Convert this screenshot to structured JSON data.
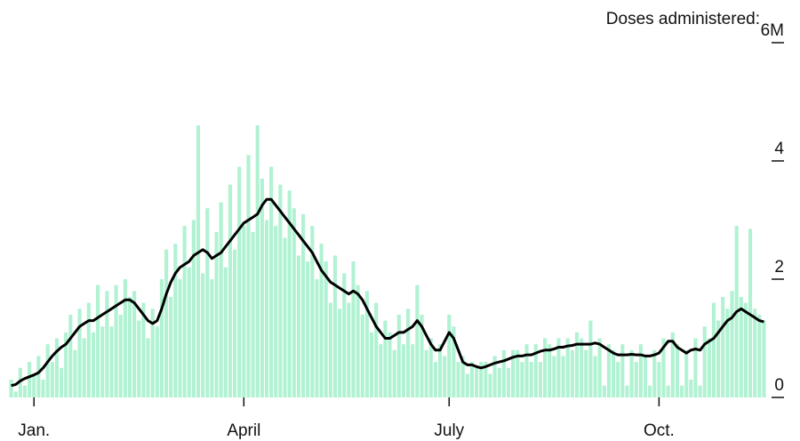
{
  "chart_data": {
    "type": "bar_line",
    "title": "Doses administered:",
    "categories": [
      null,
      null,
      null,
      null,
      null,
      "Jan.",
      null,
      null,
      null,
      null,
      null,
      null,
      null,
      null,
      null,
      null,
      null,
      null,
      null,
      null,
      null,
      null,
      null,
      null,
      null,
      null,
      null,
      null,
      null,
      null,
      null,
      null,
      null,
      null,
      null,
      null,
      null,
      null,
      null,
      null,
      null,
      null,
      null,
      null,
      null,
      null,
      null,
      null,
      null,
      null,
      null,
      "April",
      null,
      null,
      null,
      null,
      null,
      null,
      null,
      null,
      null,
      null,
      null,
      null,
      null,
      null,
      null,
      null,
      null,
      null,
      null,
      null,
      null,
      null,
      null,
      null,
      null,
      null,
      null,
      null,
      null,
      null,
      null,
      null,
      null,
      null,
      null,
      null,
      null,
      null,
      null,
      null,
      null,
      null,
      null,
      null,
      "July",
      null,
      null,
      null,
      null,
      null,
      null,
      null,
      null,
      null,
      null,
      null,
      null,
      null,
      null,
      null,
      null,
      null,
      null,
      null,
      null,
      null,
      null,
      null,
      null,
      null,
      null,
      null,
      null,
      null,
      null,
      null,
      null,
      null,
      null,
      null,
      null,
      null,
      null,
      null,
      null,
      null,
      null,
      null,
      null,
      null,
      "Oct.",
      null,
      null,
      null,
      null,
      null,
      null,
      null,
      null,
      null,
      null,
      null,
      null,
      null,
      null,
      null,
      null,
      null,
      null,
      null,
      null,
      null,
      null,
      null
    ],
    "series": [
      {
        "color": "#b0f2d2",
        "render": "bar",
        "values": [
          0.3,
          0.1,
          0.5,
          0.2,
          0.6,
          0.4,
          0.7,
          0.3,
          0.9,
          0.6,
          1.0,
          0.5,
          1.1,
          1.4,
          0.8,
          1.5,
          1.0,
          1.6,
          1.1,
          1.9,
          1.2,
          1.8,
          1.2,
          1.9,
          1.4,
          2.0,
          1.7,
          1.8,
          1.3,
          1.6,
          1.0,
          1.5,
          1.2,
          2.0,
          2.5,
          1.7,
          2.6,
          2.0,
          2.9,
          2.2,
          3.0,
          4.6,
          2.1,
          3.2,
          2.0,
          2.8,
          3.3,
          2.2,
          3.6,
          2.5,
          3.9,
          2.9,
          4.1,
          2.8,
          4.6,
          3.7,
          3.0,
          3.9,
          2.9,
          3.6,
          2.7,
          3.5,
          3.2,
          2.4,
          3.1,
          2.3,
          2.9,
          2.0,
          2.6,
          2.3,
          1.6,
          2.4,
          1.5,
          2.1,
          1.6,
          2.3,
          1.9,
          1.4,
          1.8,
          1.1,
          1.6,
          0.9,
          1.3,
          1.1,
          0.8,
          1.4,
          0.9,
          1.5,
          0.9,
          1.9,
          1.4,
          0.8,
          1.0,
          0.6,
          0.9,
          0.7,
          1.4,
          1.2,
          0.6,
          0.7,
          0.4,
          0.6,
          0.5,
          0.6,
          0.6,
          0.4,
          0.7,
          0.5,
          0.8,
          0.5,
          0.8,
          0.8,
          0.6,
          0.9,
          0.6,
          0.9,
          0.6,
          1.0,
          0.9,
          0.7,
          1.0,
          0.7,
          1.0,
          0.8,
          1.1,
          1.0,
          0.8,
          1.3,
          0.7,
          1.0,
          0.2,
          0.9,
          0.8,
          0.6,
          0.9,
          0.2,
          0.8,
          0.6,
          0.9,
          0.7,
          0.2,
          0.8,
          0.6,
          1.0,
          0.2,
          1.1,
          0.9,
          0.2,
          0.8,
          0.3,
          1.0,
          0.2,
          1.2,
          1.0,
          1.6,
          1.3,
          1.7,
          1.5,
          1.8,
          2.9,
          1.7,
          1.6,
          2.85,
          1.5,
          1.4,
          1.3
        ]
      },
      {
        "color": "#000000",
        "render": "line",
        "values": [
          0.2,
          0.22,
          0.28,
          0.32,
          0.35,
          0.38,
          0.42,
          0.5,
          0.6,
          0.7,
          0.78,
          0.85,
          0.9,
          1.0,
          1.1,
          1.2,
          1.25,
          1.3,
          1.3,
          1.35,
          1.4,
          1.45,
          1.5,
          1.55,
          1.6,
          1.65,
          1.65,
          1.6,
          1.5,
          1.4,
          1.3,
          1.25,
          1.3,
          1.5,
          1.75,
          1.95,
          2.1,
          2.2,
          2.25,
          2.3,
          2.4,
          2.45,
          2.5,
          2.45,
          2.35,
          2.4,
          2.45,
          2.55,
          2.65,
          2.75,
          2.85,
          2.95,
          3.0,
          3.05,
          3.1,
          3.25,
          3.35,
          3.35,
          3.25,
          3.15,
          3.05,
          2.95,
          2.85,
          2.75,
          2.65,
          2.55,
          2.45,
          2.3,
          2.15,
          2.05,
          1.95,
          1.9,
          1.85,
          1.8,
          1.75,
          1.8,
          1.75,
          1.65,
          1.5,
          1.35,
          1.2,
          1.1,
          1.0,
          1.0,
          1.05,
          1.1,
          1.1,
          1.15,
          1.2,
          1.3,
          1.2,
          1.05,
          0.9,
          0.8,
          0.8,
          0.95,
          1.1,
          1.0,
          0.8,
          0.6,
          0.55,
          0.55,
          0.52,
          0.5,
          0.52,
          0.55,
          0.58,
          0.6,
          0.62,
          0.65,
          0.68,
          0.7,
          0.7,
          0.72,
          0.72,
          0.75,
          0.78,
          0.8,
          0.8,
          0.82,
          0.85,
          0.85,
          0.87,
          0.88,
          0.9,
          0.9,
          0.9,
          0.9,
          0.92,
          0.9,
          0.85,
          0.8,
          0.75,
          0.72,
          0.72,
          0.72,
          0.73,
          0.72,
          0.72,
          0.7,
          0.7,
          0.72,
          0.75,
          0.85,
          0.95,
          0.95,
          0.85,
          0.8,
          0.75,
          0.8,
          0.82,
          0.8,
          0.9,
          0.95,
          1.0,
          1.1,
          1.2,
          1.3,
          1.35,
          1.45,
          1.5,
          1.45,
          1.4,
          1.35,
          1.3,
          1.28
        ]
      }
    ],
    "ylim": [
      0,
      6
    ],
    "yticks": [
      0,
      2,
      4,
      {
        "value": 6,
        "label": "6M"
      }
    ],
    "grid": false
  }
}
